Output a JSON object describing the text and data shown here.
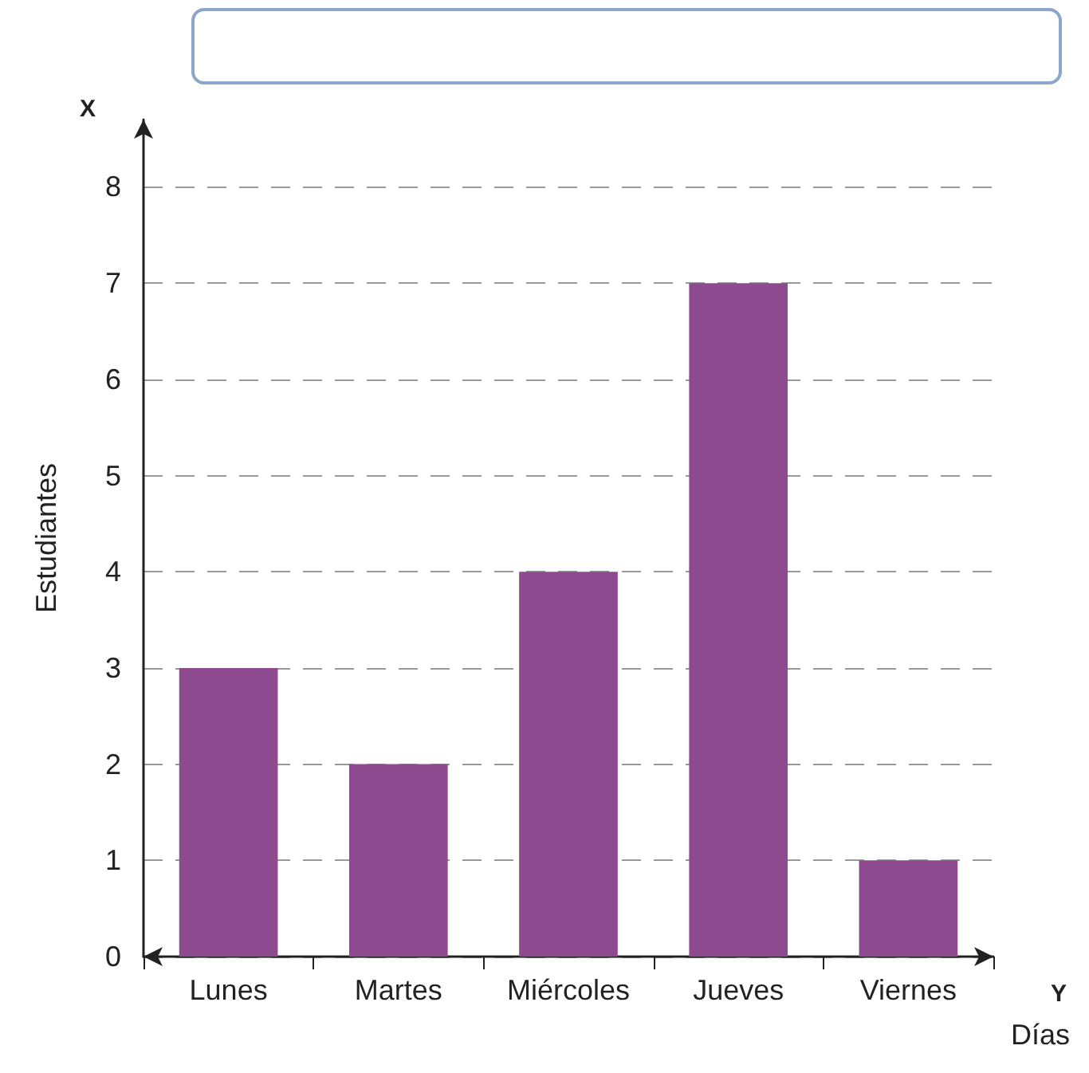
{
  "chart_data": {
    "type": "bar",
    "xlabel": "Días",
    "ylabel": "Estudiantes",
    "annotations": [
      "X",
      "Y"
    ],
    "categories": [
      "Lunes",
      "Martes",
      "Miércoles",
      "Jueves",
      "Viernes"
    ],
    "values": [
      3,
      2,
      4,
      7,
      1
    ],
    "color": "#8e4a8e",
    "ylim": [
      0,
      8.7
    ],
    "yticks": [
      0,
      1,
      2,
      3,
      4,
      5,
      6,
      7,
      8
    ],
    "grid": "y"
  }
}
